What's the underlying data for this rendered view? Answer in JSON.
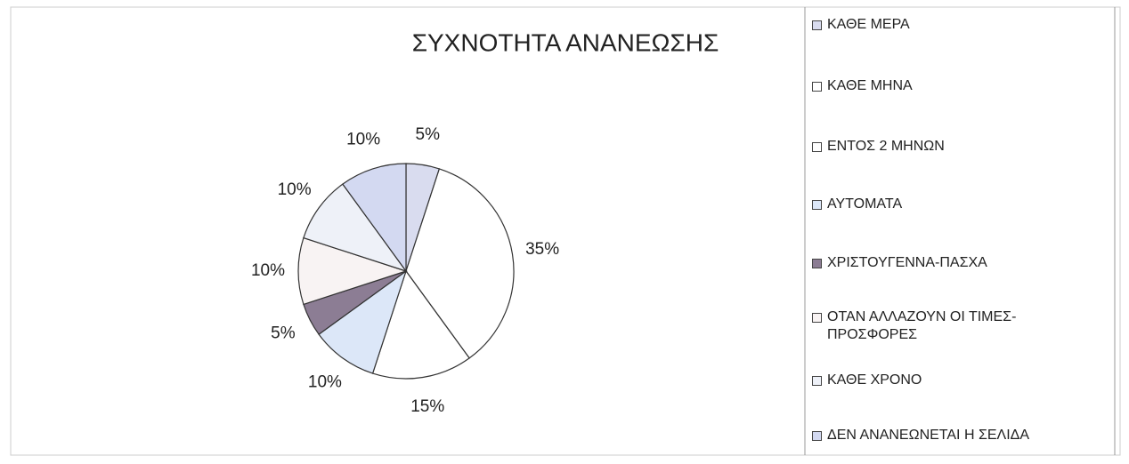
{
  "chart_data": {
    "type": "pie",
    "title": "ΣΥΧΝΟΤΗΤΑ ΑΝΑΝΕΩΣΗΣ",
    "categories": [
      "ΚΑΘΕ ΜΕΡΑ",
      "ΚΑΘΕ ΜΗΝΑ",
      "ΕΝΤΟΣ 2 ΜΗΝΩΝ",
      "ΑΥΤΟΜΑΤΑ",
      "ΧΡΙΣΤΟΥΓΕΝΝΑ-ΠΑΣΧΑ",
      "ΟΤΑΝ ΑΛΛΑΖΟΥΝ ΟΙ ΤΙΜΕΣ-ΠΡΟΣΦΟΡΕΣ",
      "ΚΑΘΕ ΧΡΟΝΟ",
      "ΔΕΝ ΑΝΑΝΕΩΝΕΤΑΙ Η ΣΕΛΙΔΑ"
    ],
    "values": [
      5,
      35,
      15,
      10,
      5,
      10,
      10,
      10
    ],
    "value_labels": [
      "5%",
      "35%",
      "15%",
      "10%",
      "5%",
      "10%",
      "10%",
      "10%"
    ],
    "colors": [
      "#d9dcef",
      "#ffffff",
      "#ffffff",
      "#dce7f8",
      "#8c7d94",
      "#f8f3f3",
      "#eef1f8",
      "#d3d9f1"
    ],
    "legend": "right"
  }
}
